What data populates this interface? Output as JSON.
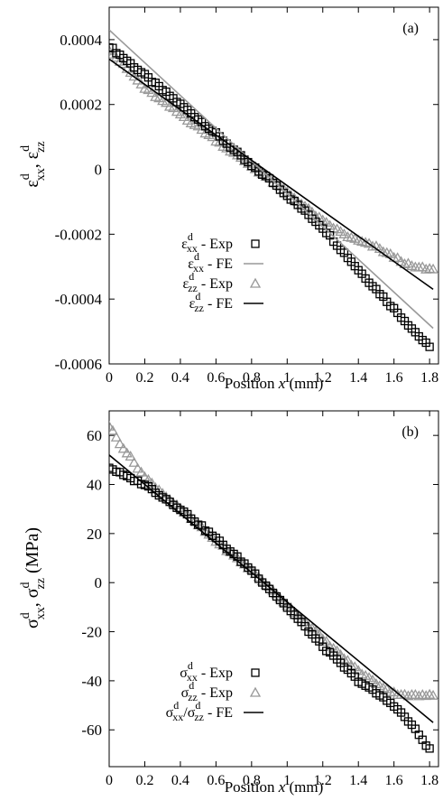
{
  "chart_data": [
    {
      "type": "scatter",
      "panel_label": "(a)",
      "xlabel": {
        "main": "Position ",
        "italic": "x",
        "unit": " (mm)"
      },
      "ylabel": {
        "sym": "ε",
        "sup": "d",
        "sub1": "xx",
        "sep": ", ",
        "sub2": "zz"
      },
      "xlim": [
        0,
        1.85
      ],
      "ylim": [
        -0.0006,
        0.0005
      ],
      "xticks": [
        0,
        0.2,
        0.4,
        0.6,
        0.8,
        1,
        1.2,
        1.4,
        1.6,
        1.8
      ],
      "xtick_labels": [
        "0",
        "0.2",
        "0.4",
        "0.6",
        "0.8",
        "1",
        "1.2",
        "1.4",
        "1.6",
        "1.8"
      ],
      "yticks": [
        -0.0006,
        -0.0004,
        -0.0002,
        0,
        0.0002,
        0.0004
      ],
      "ytick_labels": [
        "-0.0006",
        "-0.0004",
        "-0.0002",
        "0",
        "0.0002",
        "0.0004"
      ],
      "legend_position": "bottom-center",
      "colors": {
        "exp_xx": "#000000",
        "fe_xx": "#999999",
        "exp_zz": "#999999",
        "fe_zz": "#000000"
      },
      "series": [
        {
          "legend": {
            "sym": "ε",
            "sub": "xx",
            "sup": "d",
            "rest": " - Exp"
          },
          "kind": "square-markers",
          "x": [
            0.0,
            0.2,
            0.4,
            0.6,
            0.8,
            0.9,
            1.0,
            1.2,
            1.4,
            1.6,
            1.8
          ],
          "y": [
            0.00038,
            0.00029,
            0.0002,
            0.00011,
            1e-05,
            -3e-05,
            -8e-05,
            -0.00018,
            -0.00031,
            -0.00043,
            -0.00055
          ]
        },
        {
          "legend": {
            "sym": "ε",
            "sub": "xx",
            "sup": "d",
            "rest": " - FE"
          },
          "kind": "line",
          "x": [
            0.0,
            1.82
          ],
          "y": [
            0.00043,
            -0.00049
          ]
        },
        {
          "legend": {
            "sym": "ε",
            "sub": "zz",
            "sup": "d",
            "rest": " - Exp"
          },
          "kind": "triangle-markers",
          "x": [
            0.0,
            0.2,
            0.4,
            0.6,
            0.8,
            1.0,
            1.2,
            1.35,
            1.4,
            1.5,
            1.6,
            1.7,
            1.82
          ],
          "y": [
            0.00037,
            0.00025,
            0.00017,
            9e-05,
            1e-05,
            -7e-05,
            -0.00016,
            -0.00021,
            -0.00022,
            -0.00024,
            -0.00027,
            -0.0003,
            -0.00031
          ]
        },
        {
          "legend": {
            "sym": "ε",
            "sub": "zz",
            "sup": "d",
            "rest": " - FE"
          },
          "kind": "line",
          "x": [
            0.0,
            1.82
          ],
          "y": [
            0.00034,
            -0.00037
          ]
        }
      ]
    },
    {
      "type": "scatter",
      "panel_label": "(b)",
      "xlabel": {
        "main": "Position ",
        "italic": "x",
        "unit": " (mm)"
      },
      "ylabel": {
        "sym": "σ",
        "sup": "d",
        "sub1": "xx",
        "sep": ", ",
        "sub2": "zz",
        "unit": "  (MPa)"
      },
      "xlim": [
        0,
        1.85
      ],
      "ylim": [
        -75,
        70
      ],
      "xticks": [
        0,
        0.2,
        0.4,
        0.6,
        0.8,
        1,
        1.2,
        1.4,
        1.6,
        1.8
      ],
      "xtick_labels": [
        "0",
        "0.2",
        "0.4",
        "0.6",
        "0.8",
        "1",
        "1.2",
        "1.4",
        "1.6",
        "1.8"
      ],
      "yticks": [
        -60,
        -40,
        -20,
        0,
        20,
        40,
        60
      ],
      "ytick_labels": [
        "-60",
        "-40",
        "-20",
        "0",
        "20",
        "40",
        "60"
      ],
      "legend_position": "bottom-center",
      "colors": {
        "exp_xx": "#000000",
        "exp_zz": "#999999",
        "fe": "#000000"
      },
      "series": [
        {
          "legend": {
            "sym": "σ",
            "sub": "xx",
            "sup": "d",
            "rest": " - Exp"
          },
          "kind": "square-markers",
          "x": [
            0.0,
            0.1,
            0.2,
            0.4,
            0.6,
            0.8,
            1.0,
            1.2,
            1.4,
            1.6,
            1.7,
            1.8
          ],
          "y": [
            47,
            43,
            40,
            30,
            18,
            5,
            -10,
            -26,
            -40,
            -50,
            -58,
            -68
          ]
        },
        {
          "legend": {
            "sym": "σ",
            "sub": "zz",
            "sup": "d",
            "rest": " - Exp"
          },
          "kind": "triangle-markers",
          "x": [
            0.0,
            0.05,
            0.1,
            0.2,
            0.4,
            0.6,
            0.8,
            1.0,
            1.2,
            1.4,
            1.5,
            1.6,
            1.7,
            1.82
          ],
          "y": [
            64,
            58,
            53,
            43,
            30,
            17,
            5,
            -9,
            -23,
            -36,
            -41,
            -45,
            -46,
            -46
          ]
        },
        {
          "legend": {
            "sym": "σ",
            "sub": "xx",
            "sup": "d",
            "sep": "/",
            "sym2": "σ",
            "sub2": "zz",
            "sup2": "d",
            "rest": " - FE"
          },
          "kind": "line",
          "x": [
            0.0,
            1.82
          ],
          "y": [
            52,
            -57
          ]
        }
      ]
    }
  ]
}
